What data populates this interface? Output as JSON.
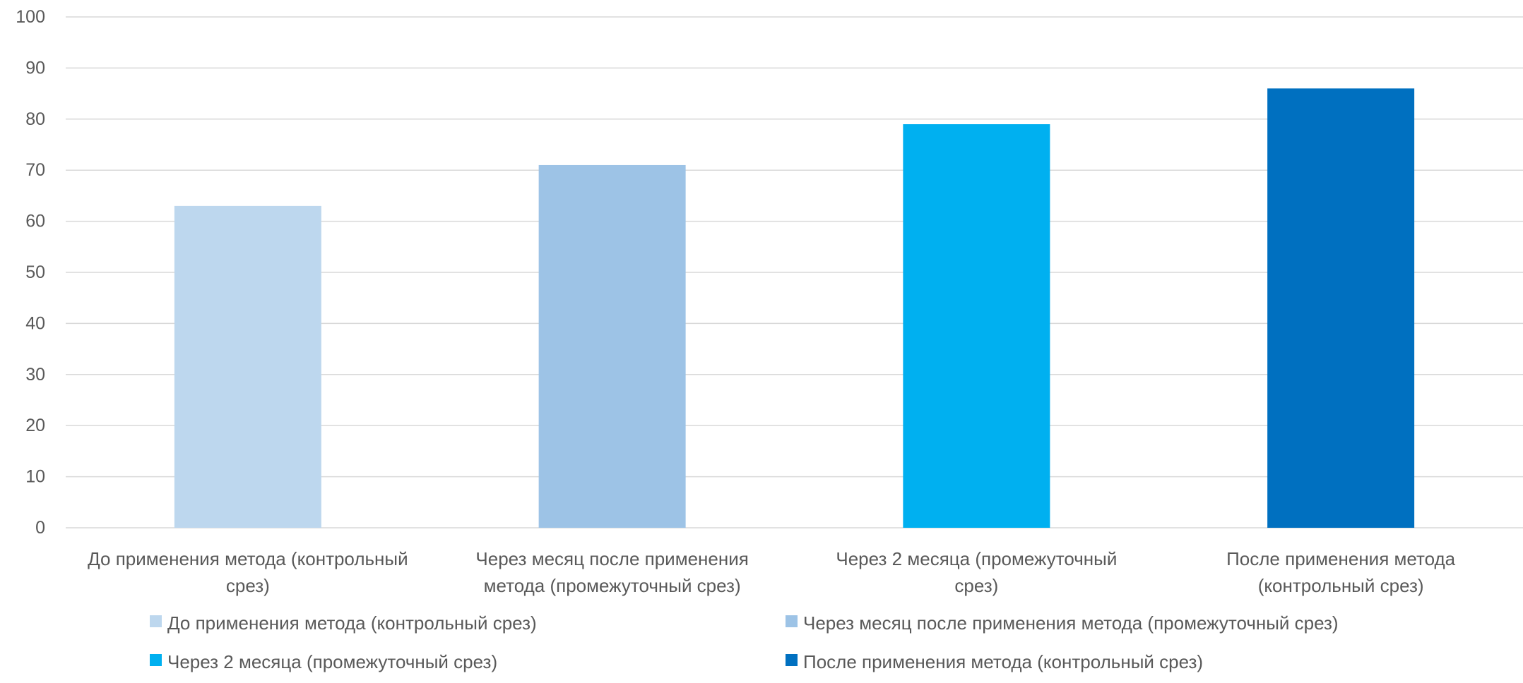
{
  "chart_data": {
    "type": "bar",
    "categories": [
      "До применения метода (контрольный срез)",
      "Через месяц после применения метода (промежуточный срез)",
      "Через 2 месяца (промежуточный срез)",
      "После применения метода (контрольный срез)"
    ],
    "category_label_lines": [
      [
        "До применения метода (контрольный",
        "срез)"
      ],
      [
        "Через месяц после применения",
        "метода (промежуточный срез)"
      ],
      [
        "Через 2 месяца (промежуточный",
        "срез)"
      ],
      [
        "После применения метода",
        "(контрольный срез)"
      ]
    ],
    "values": [
      63,
      71,
      79,
      86
    ],
    "colors": [
      "#BDD7EE",
      "#9DC3E6",
      "#00B0F0",
      "#0070C0"
    ],
    "legend": [
      "До применения метода (контрольный срез)",
      "Через месяц после применения метода (промежуточный срез)",
      "Через 2 месяца (промежуточный срез)",
      "После применения метода (контрольный срез)"
    ],
    "legend_placement": "bottom",
    "title": "",
    "xlabel": "",
    "ylabel": "",
    "ylim": [
      0,
      100
    ],
    "yticks": [
      0,
      10,
      20,
      30,
      40,
      50,
      60,
      70,
      80,
      90,
      100
    ],
    "grid": true,
    "gridline_color": "#D9D9D9"
  }
}
